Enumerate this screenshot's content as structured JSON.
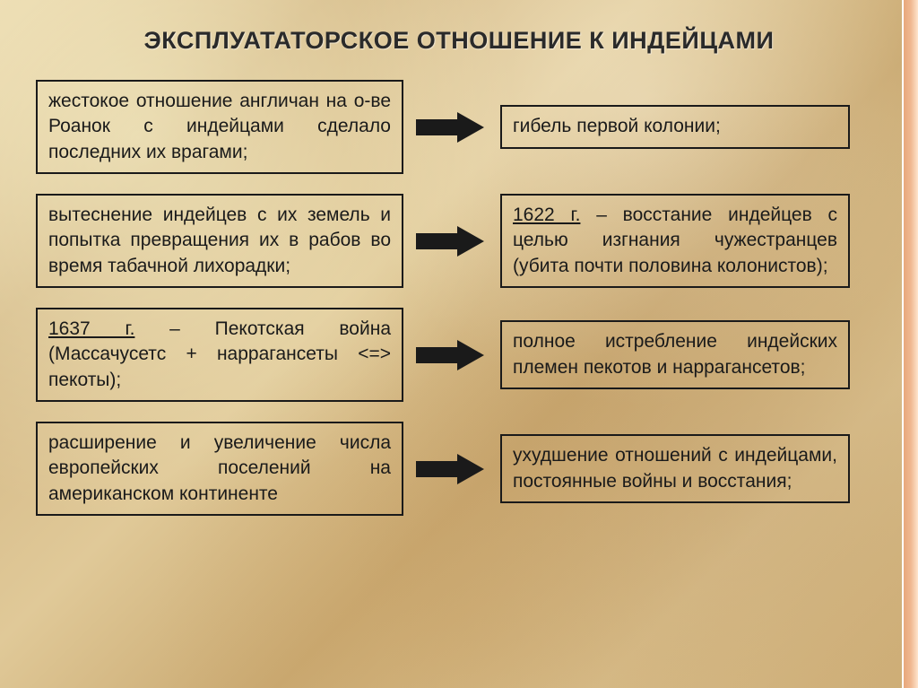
{
  "title": "ЭКСПЛУАТАТОРСКОЕ ОТНОШЕНИЕ К ИНДЕЙЦАМИ",
  "rows": [
    {
      "left": "жестокое отношение англичан на о-ве Роанок с индейцами сделало последних их врагами;",
      "right": "гибель первой колонии;",
      "left_underline": "",
      "right_underline": ""
    },
    {
      "left": "вытеснение индейцев с их земель и попытка превращения их в рабов во время табачной лихорадки;",
      "right": " – восстание индейцев с целью изгнания чужестранцев (убита почти половина колонистов);",
      "left_underline": "",
      "right_underline": "1622 г."
    },
    {
      "left": " – Пекотская война (Массачусетс + наррагансеты <=> пекоты);",
      "right": "полное истребление индейских племен пекотов и наррагансетов;",
      "left_underline": "1637 г.",
      "right_underline": ""
    },
    {
      "left": "расширение и увеличение числа европейских поселений на американском континенте",
      "right": "ухудшение отношений с индейцами, постоянные войны и восстания;",
      "left_underline": "",
      "right_underline": ""
    }
  ],
  "style": {
    "title_fontsize": 27,
    "box_fontsize": 21,
    "border_color": "#1a1a1a",
    "arrow_color": "#1a1a1a",
    "bg_colors": [
      "#e8d4a8",
      "#d4b886",
      "#e0c998",
      "#c9a870"
    ],
    "right_strip_colors": [
      "#e8a87c",
      "#f0b890",
      "#ffe4cc"
    ],
    "left_box_width": 410,
    "right_box_width": 390,
    "arrow_width": 80,
    "row_gap": 22
  }
}
